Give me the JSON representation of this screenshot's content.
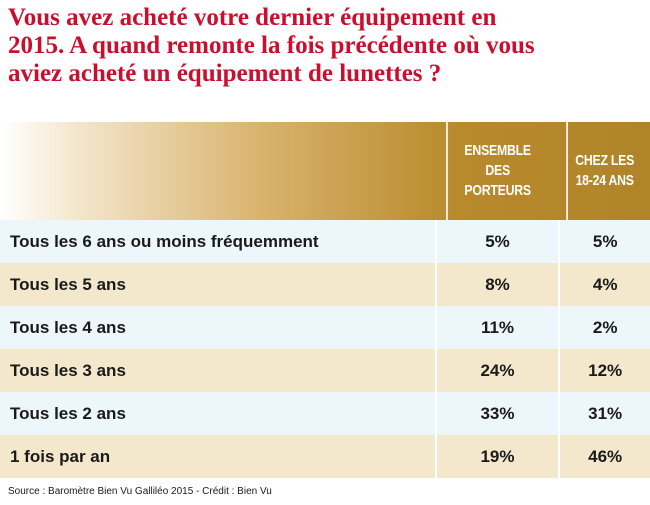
{
  "title_lines": [
    "Vous avez acheté votre dernier équipement en",
    "2015.  A quand remonte la fois précédente où vous",
    "aviez acheté un équipement de lunettes ?"
  ],
  "chart_data": {
    "type": "table",
    "columns": [
      {
        "name": "ENSEMBLE DES PORTEURS",
        "lines": [
          "ENSEMBLE",
          "DES",
          "PORTEURS"
        ]
      },
      {
        "name": "CHEZ LES 18-24 ANS",
        "lines": [
          "CHEZ LES",
          "18-24 ANS"
        ]
      }
    ],
    "rows": [
      {
        "label": "Tous les 6 ans ou moins fréquemment",
        "values": [
          "5%",
          "5%"
        ]
      },
      {
        "label": "Tous les 5 ans",
        "values": [
          "8%",
          "4%"
        ]
      },
      {
        "label": "Tous les 4 ans",
        "values": [
          "11%",
          "2%"
        ]
      },
      {
        "label": "Tous les 3 ans",
        "values": [
          "24%",
          "12%"
        ]
      },
      {
        "label": "Tous les 2 ans",
        "values": [
          "33%",
          "31%"
        ]
      },
      {
        "label": "1 fois par an",
        "values": [
          "19%",
          "46%"
        ]
      }
    ]
  },
  "source": "Source : Baromètre Bien Vu Galliléo 2015 - Crédit : Bien Vu",
  "colors": {
    "title": "#c8102e",
    "header_gold": "#b08429",
    "row_blue": "#ecf6fb",
    "row_beige": "#f3e8cc"
  }
}
